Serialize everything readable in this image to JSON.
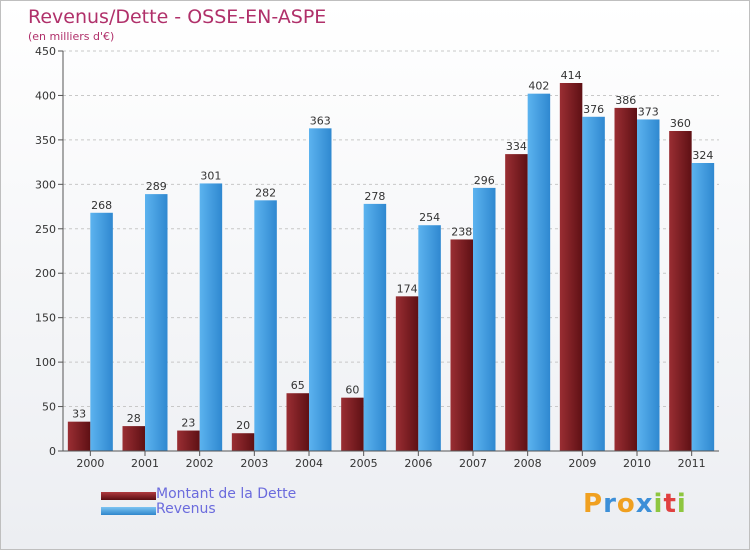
{
  "page": {
    "title": "Revenus/Dette - OSSE-EN-ASPE",
    "subtitle": "(en milliers d'€)"
  },
  "chart_data": {
    "type": "bar",
    "categories": [
      "2000",
      "2001",
      "2002",
      "2003",
      "2004",
      "2005",
      "2006",
      "2007",
      "2008",
      "2009",
      "2010",
      "2011"
    ],
    "series": [
      {
        "name": "Montant de la Dette",
        "color": "#7a1e22",
        "values": [
          33,
          28,
          23,
          20,
          65,
          60,
          174,
          238,
          334,
          414,
          386,
          360
        ]
      },
      {
        "name": "Revenus",
        "color": "#4aa6e8",
        "values": [
          268,
          289,
          301,
          282,
          363,
          278,
          254,
          296,
          402,
          376,
          373,
          324
        ]
      }
    ],
    "ylim": [
      0,
      450
    ],
    "yticks": [
      0,
      50,
      100,
      150,
      200,
      250,
      300,
      350,
      400,
      450
    ],
    "grid": true,
    "legend": "bottom-left"
  },
  "logo": {
    "letters": [
      "P",
      "r",
      "o",
      "x",
      "i",
      "t",
      "i"
    ],
    "colors": [
      "#f0a020",
      "#3c8fd8",
      "#f0a020",
      "#3c8fd8",
      "#8ec63f",
      "#e04040",
      "#8ec63f"
    ]
  }
}
